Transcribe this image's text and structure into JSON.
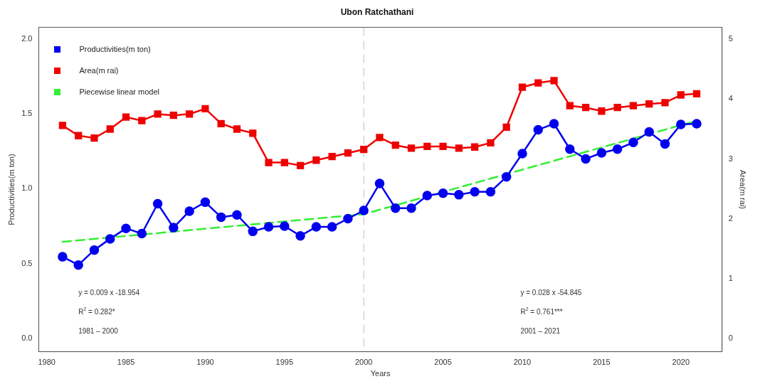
{
  "chart_data": {
    "type": "line",
    "title": "Ubon Ratchathani",
    "xlabel": "Years",
    "ylabel": "Productivities(m ton)",
    "y2label": "Area(m rai)",
    "x": [
      1981,
      1982,
      1983,
      1984,
      1985,
      1986,
      1987,
      1988,
      1989,
      1990,
      1991,
      1992,
      1993,
      1994,
      1995,
      1996,
      1997,
      1998,
      1999,
      2000,
      2001,
      2002,
      2003,
      2004,
      2005,
      2006,
      2007,
      2008,
      2009,
      2010,
      2011,
      2012,
      2013,
      2014,
      2015,
      2016,
      2017,
      2018,
      2019,
      2020,
      2021
    ],
    "series": [
      {
        "name": "Productivities(m ton)",
        "color": "#0000ee",
        "marker": "circle",
        "values": [
          0.545,
          0.49,
          0.59,
          0.665,
          0.735,
          0.7,
          0.9,
          0.74,
          0.85,
          0.91,
          0.81,
          0.825,
          0.715,
          0.745,
          0.75,
          0.685,
          0.745,
          0.745,
          0.8,
          0.855,
          1.035,
          0.87,
          0.87,
          0.955,
          0.97,
          0.96,
          0.98,
          0.98,
          1.08,
          1.235,
          1.395,
          1.435,
          1.265,
          1.2,
          1.24,
          1.265,
          1.31,
          1.38,
          1.3,
          1.43,
          1.435
        ]
      },
      {
        "name": "Area(m rai)",
        "color": "#ee0000",
        "marker": "square",
        "axis": "y2",
        "values": [
          3.56,
          3.39,
          3.35,
          3.5,
          3.7,
          3.64,
          3.75,
          3.73,
          3.75,
          3.84,
          3.59,
          3.5,
          3.43,
          2.94,
          2.94,
          2.89,
          2.98,
          3.04,
          3.1,
          3.16,
          3.36,
          3.23,
          3.18,
          3.21,
          3.21,
          3.18,
          3.2,
          3.27,
          3.53,
          4.2,
          4.27,
          4.31,
          3.89,
          3.86,
          3.8,
          3.86,
          3.89,
          3.92,
          3.94,
          4.07,
          4.09
        ]
      },
      {
        "name": "Piecewise linear model",
        "color": "#33ee33",
        "marker": "none",
        "line_style": "dashed",
        "x": [
          1981,
          2000,
          2021
        ],
        "values": [
          0.645,
          0.83,
          1.455
        ]
      }
    ],
    "xlim": [
      1979.5,
      2022.6
    ],
    "xticks": [
      1980,
      1985,
      1990,
      1995,
      2000,
      2005,
      2010,
      2015,
      2020
    ],
    "ylim": [
      -0.09,
      2.08
    ],
    "yticks": [
      {
        "value": 0,
        "label": "0.0"
      },
      {
        "value": 0.5,
        "label": "0.5"
      },
      {
        "value": 1,
        "label": "1.0"
      },
      {
        "value": 1.5,
        "label": "1.5"
      },
      {
        "value": 2,
        "label": "2.0"
      }
    ],
    "y2lim": [
      -0.22,
      5.2
    ],
    "y2ticks": [
      0,
      1,
      2,
      3,
      4,
      5
    ],
    "ref_lines": [
      {
        "axis": "x",
        "value": 2000,
        "color": "#c8c8c8",
        "line_style": "dashed"
      }
    ],
    "annotations": [
      "y = 0.009 x -18.954",
      "R$^{2}$ = 0.282*",
      "1981 – 2000",
      "y = 0.028 x -54.845",
      "R$^{2}$ = 0.761***",
      "2001 – 2021"
    ],
    "legend": "top left",
    "grid": false
  }
}
